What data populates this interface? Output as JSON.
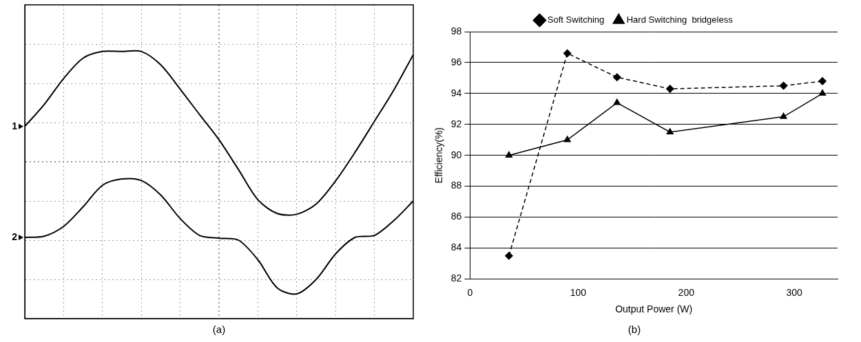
{
  "chart_data": [
    {
      "type": "line",
      "title": "(a)",
      "x": [
        0,
        0.5,
        1,
        1.5,
        2,
        2.5,
        3,
        3.5,
        4,
        4.5,
        5,
        5.5,
        6,
        6.5,
        7,
        7.5,
        8,
        8.5,
        9,
        9.5,
        10
      ],
      "series": [
        {
          "name": "1",
          "color": "#000000",
          "values": [
            0.9,
            1.46,
            2.12,
            2.64,
            2.81,
            2.81,
            2.81,
            2.47,
            1.85,
            1.2,
            0.56,
            -0.2,
            -0.97,
            -1.32,
            -1.34,
            -1.08,
            -0.49,
            0.24,
            1.03,
            1.83,
            2.73
          ]
        },
        {
          "name": "2",
          "color": "#000000",
          "values": [
            -1.93,
            -1.9,
            -1.65,
            -1.15,
            -0.6,
            -0.44,
            -0.48,
            -0.85,
            -1.45,
            -1.88,
            -1.95,
            -2.0,
            -2.5,
            -3.22,
            -3.37,
            -3.0,
            -2.35,
            -1.93,
            -1.88,
            -1.5,
            -1.0
          ]
        }
      ],
      "xlim": [
        0,
        10
      ],
      "ylim": [
        -4,
        4
      ],
      "xticks": [
        0,
        1,
        2,
        3,
        4,
        5,
        6,
        7,
        8,
        9,
        10
      ],
      "yticks": [
        -4,
        -3,
        -2,
        -1,
        0,
        1,
        2,
        3,
        4
      ],
      "grid": true,
      "tick_labels": false
    },
    {
      "type": "line",
      "title": "(b)",
      "x_label": "Output Power (W)",
      "y_label": "Efficiency(%)",
      "x": [
        36,
        90,
        136,
        185,
        290,
        326
      ],
      "series": [
        {
          "name": "Soft Switching",
          "color": "#000000",
          "marker": "diamond",
          "line_style": "dashed",
          "values": [
            83.5,
            96.6,
            95.05,
            94.3,
            94.5,
            94.8
          ]
        },
        {
          "name": "Hard Switching  bridgeless",
          "color": "#000000",
          "marker": "triangle",
          "line_style": "solid",
          "values": [
            90,
            91,
            93.4,
            91.5,
            92.5,
            94
          ]
        }
      ],
      "xlim": [
        0,
        340
      ],
      "ylim": [
        82,
        98
      ],
      "xticks": [
        0,
        100,
        200,
        300
      ],
      "yticks": [
        82,
        84,
        86,
        88,
        90,
        92,
        94,
        96,
        98
      ],
      "grid": "y",
      "legend": "top"
    }
  ]
}
